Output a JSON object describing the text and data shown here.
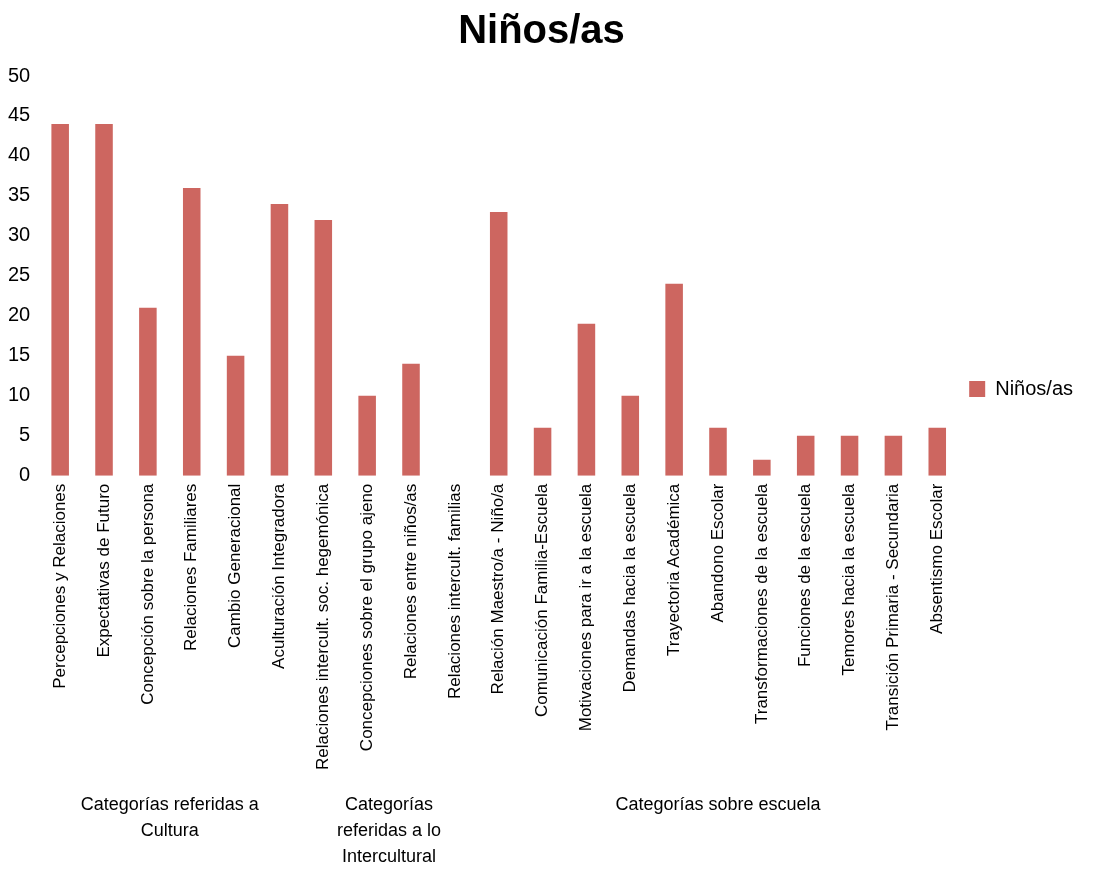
{
  "chart_data": {
    "type": "bar",
    "title": "Niños/as",
    "categories": [
      "Percepciones y Relaciones",
      "Expectativas de Futuro",
      "Concepción sobre la persona",
      "Relaciones Familiares",
      "Cambio Generacional",
      "Aculturación Integradora",
      "Relaciones intercult. soc. hegemónica",
      "Concepciones sobre el grupo ajeno",
      "Relaciones entre niños/as",
      "Relaciones intercult. familias",
      "Relación Maestro/a - Niño/a",
      "Comunicación Familia-Escuela",
      "Motivaciones para ir a la escuela",
      "Demandas hacia la escuela",
      "Trayectoria Académica",
      "Abandono Escolar",
      "Transformaciones de la escuela",
      "Funciones de la escuela",
      "Temores hacia la escuela",
      "Transición Primaria - Secundaria",
      "Absentismo Escolar"
    ],
    "series": [
      {
        "name": "Niños/as",
        "color": "#cd6660",
        "values": [
          44,
          44,
          21,
          36,
          15,
          34,
          32,
          10,
          14,
          0,
          33,
          6,
          19,
          10,
          24,
          6,
          2,
          5,
          5,
          5,
          6
        ]
      }
    ],
    "ylim": [
      0,
      50
    ],
    "yticks": [
      0,
      5,
      10,
      15,
      20,
      25,
      30,
      35,
      40,
      45,
      50
    ],
    "grid": false,
    "legend": "right",
    "annotations": [
      "Categorías referidas a Cultura",
      "Categorías referidas a lo Intercultural",
      "Categorías sobre escuela"
    ]
  }
}
